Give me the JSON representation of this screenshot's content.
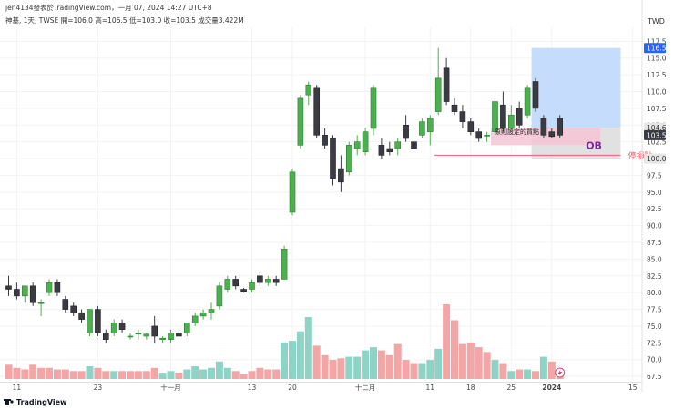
{
  "header": {
    "author_line": "jen4134發表於TradingView.com，一月 07, 2024 14:27 UTC+8",
    "symbol_line": "神基, 1天, TWSE  開=106.0  高=106.5  低=103.0  收=103.5  成交量3.422M"
  },
  "footer": {
    "brand": "TradingView"
  },
  "colors": {
    "up": "#4caf50",
    "down": "#3b3b44",
    "vol_up": "#8fd3c6",
    "vol_down": "#f4a5a5",
    "grid": "#f3f3f3",
    "text": "#333333",
    "tp_zone": "#bcd6fb",
    "sl_zone": "#d9d9d9",
    "ob_zone": "#f6c4d6",
    "stop_line": "#ef5a6f",
    "ob_text": "#7a2b9e"
  },
  "chart_data": {
    "type": "candlestick",
    "currency": "TWD",
    "x_ticks": [
      {
        "i": 1,
        "label": "11"
      },
      {
        "i": 11,
        "label": "23"
      },
      {
        "i": 20,
        "label": "十一月"
      },
      {
        "i": 30,
        "label": "13"
      },
      {
        "i": 35,
        "label": "20"
      },
      {
        "i": 44,
        "label": "十二月"
      },
      {
        "i": 52,
        "label": "11"
      },
      {
        "i": 57,
        "label": "18"
      },
      {
        "i": 62,
        "label": "25"
      },
      {
        "i": 67,
        "label": "2024"
      },
      {
        "i": 77,
        "label": "15"
      }
    ],
    "y_ticks": [
      117.5,
      115.0,
      112.5,
      110.0,
      107.5,
      105.0,
      102.5,
      100.0,
      97.5,
      95.0,
      92.5,
      90.0,
      87.5,
      85.0,
      82.5,
      80.0,
      77.5,
      75.0,
      72.5,
      70.0,
      67.5
    ],
    "y_range": [
      66.7,
      118.5
    ],
    "price_labels": [
      {
        "value": "116.5",
        "price": 116.5,
        "style": "blue"
      },
      {
        "value": "104.6",
        "price": 104.6,
        "style": "gray"
      },
      {
        "value": "103.5",
        "price": 103.5,
        "style": "dark"
      },
      {
        "value": "100.0",
        "price": 100.0,
        "style": "gray"
      }
    ],
    "candles": [
      {
        "i": 0,
        "o": 81.0,
        "h": 82.5,
        "l": 79.5,
        "c": 80.5
      },
      {
        "i": 1,
        "o": 80.5,
        "h": 81.5,
        "l": 79.0,
        "c": 79.5
      },
      {
        "i": 2,
        "o": 79.5,
        "h": 81.0,
        "l": 78.5,
        "c": 81.0
      },
      {
        "i": 3,
        "o": 81.0,
        "h": 81.5,
        "l": 78.0,
        "c": 78.5
      },
      {
        "i": 4,
        "o": 78.5,
        "h": 79.0,
        "l": 76.5,
        "c": 78.5
      },
      {
        "i": 5,
        "o": 80.0,
        "h": 82.0,
        "l": 79.5,
        "c": 81.5
      },
      {
        "i": 6,
        "o": 81.5,
        "h": 82.0,
        "l": 79.5,
        "c": 80.0
      },
      {
        "i": 7,
        "o": 79.0,
        "h": 79.5,
        "l": 77.0,
        "c": 77.5
      },
      {
        "i": 8,
        "o": 78.0,
        "h": 78.5,
        "l": 76.5,
        "c": 77.0
      },
      {
        "i": 9,
        "o": 77.0,
        "h": 77.5,
        "l": 75.5,
        "c": 76.0
      },
      {
        "i": 10,
        "o": 74.0,
        "h": 77.5,
        "l": 73.5,
        "c": 77.5
      },
      {
        "i": 11,
        "o": 77.5,
        "h": 78.0,
        "l": 73.5,
        "c": 74.0
      },
      {
        "i": 12,
        "o": 74.0,
        "h": 74.5,
        "l": 72.5,
        "c": 73.0
      },
      {
        "i": 13,
        "o": 74.0,
        "h": 76.0,
        "l": 73.5,
        "c": 75.5
      },
      {
        "i": 14,
        "o": 75.5,
        "h": 76.0,
        "l": 74.0,
        "c": 74.5
      },
      {
        "i": 15,
        "o": 73.5,
        "h": 74.0,
        "l": 73.0,
        "c": 73.5
      },
      {
        "i": 16,
        "o": 73.8,
        "h": 74.5,
        "l": 73.0,
        "c": 74.0
      },
      {
        "i": 17,
        "o": 73.5,
        "h": 74.0,
        "l": 73.0,
        "c": 73.8
      },
      {
        "i": 18,
        "o": 75.0,
        "h": 76.5,
        "l": 72.5,
        "c": 73.5
      },
      {
        "i": 19,
        "o": 73.0,
        "h": 73.5,
        "l": 72.5,
        "c": 73.2
      },
      {
        "i": 20,
        "o": 73.0,
        "h": 74.5,
        "l": 72.5,
        "c": 74.0
      },
      {
        "i": 21,
        "o": 74.0,
        "h": 74.5,
        "l": 73.5,
        "c": 73.5
      },
      {
        "i": 22,
        "o": 74.0,
        "h": 75.5,
        "l": 73.5,
        "c": 75.5
      },
      {
        "i": 23,
        "o": 75.5,
        "h": 77.0,
        "l": 75.0,
        "c": 76.5
      },
      {
        "i": 24,
        "o": 76.5,
        "h": 77.5,
        "l": 76.0,
        "c": 77.0
      },
      {
        "i": 25,
        "o": 77.0,
        "h": 78.5,
        "l": 76.0,
        "c": 77.5
      },
      {
        "i": 26,
        "o": 78.0,
        "h": 81.5,
        "l": 77.5,
        "c": 81.0
      },
      {
        "i": 27,
        "o": 80.5,
        "h": 82.5,
        "l": 80.0,
        "c": 82.0
      },
      {
        "i": 28,
        "o": 82.0,
        "h": 82.5,
        "l": 80.5,
        "c": 81.0
      },
      {
        "i": 29,
        "o": 80.5,
        "h": 80.7,
        "l": 80.0,
        "c": 80.2
      },
      {
        "i": 30,
        "o": 80.5,
        "h": 82.0,
        "l": 80.0,
        "c": 81.5
      },
      {
        "i": 31,
        "o": 82.5,
        "h": 83.0,
        "l": 81.0,
        "c": 81.5
      },
      {
        "i": 32,
        "o": 81.5,
        "h": 82.5,
        "l": 81.0,
        "c": 82.0
      },
      {
        "i": 33,
        "o": 82.0,
        "h": 82.5,
        "l": 81.0,
        "c": 81.5
      },
      {
        "i": 34,
        "o": 82.0,
        "h": 87.0,
        "l": 82.0,
        "c": 86.5
      },
      {
        "i": 35,
        "o": 92.0,
        "h": 98.5,
        "l": 91.5,
        "c": 98.0
      },
      {
        "i": 36,
        "o": 102.0,
        "h": 109.5,
        "l": 101.5,
        "c": 109.0
      },
      {
        "i": 37,
        "o": 109.5,
        "h": 111.5,
        "l": 108.0,
        "c": 111.0
      },
      {
        "i": 38,
        "o": 110.5,
        "h": 111.0,
        "l": 103.0,
        "c": 103.5
      },
      {
        "i": 39,
        "o": 103.5,
        "h": 104.5,
        "l": 101.5,
        "c": 102.0
      },
      {
        "i": 40,
        "o": 103.0,
        "h": 103.5,
        "l": 96.0,
        "c": 97.0
      },
      {
        "i": 41,
        "o": 98.5,
        "h": 100.5,
        "l": 95.0,
        "c": 96.5
      },
      {
        "i": 42,
        "o": 98.0,
        "h": 102.5,
        "l": 97.5,
        "c": 102.0
      },
      {
        "i": 43,
        "o": 101.5,
        "h": 103.5,
        "l": 100.5,
        "c": 102.5
      },
      {
        "i": 44,
        "o": 101.0,
        "h": 104.5,
        "l": 100.5,
        "c": 104.0
      },
      {
        "i": 45,
        "o": 104.5,
        "h": 111.0,
        "l": 103.5,
        "c": 110.5
      },
      {
        "i": 46,
        "o": 102.0,
        "h": 103.0,
        "l": 100.0,
        "c": 100.5
      },
      {
        "i": 47,
        "o": 101.5,
        "h": 102.5,
        "l": 100.5,
        "c": 101.0
      },
      {
        "i": 48,
        "o": 101.5,
        "h": 103.0,
        "l": 100.5,
        "c": 102.5
      },
      {
        "i": 49,
        "o": 105.0,
        "h": 106.5,
        "l": 102.5,
        "c": 103.0
      },
      {
        "i": 50,
        "o": 102.5,
        "h": 103.0,
        "l": 101.0,
        "c": 101.5
      },
      {
        "i": 51,
        "o": 103.5,
        "h": 106.0,
        "l": 103.0,
        "c": 105.5
      },
      {
        "i": 52,
        "o": 104.0,
        "h": 106.5,
        "l": 102.0,
        "c": 106.0
      },
      {
        "i": 53,
        "o": 107.0,
        "h": 116.5,
        "l": 106.5,
        "c": 112.0
      },
      {
        "i": 54,
        "o": 113.5,
        "h": 115.0,
        "l": 108.0,
        "c": 108.5
      },
      {
        "i": 55,
        "o": 108.0,
        "h": 109.0,
        "l": 106.5,
        "c": 107.0
      },
      {
        "i": 56,
        "o": 107.0,
        "h": 108.0,
        "l": 104.5,
        "c": 105.5
      },
      {
        "i": 57,
        "o": 105.5,
        "h": 106.0,
        "l": 103.5,
        "c": 104.0
      },
      {
        "i": 58,
        "o": 104.0,
        "h": 104.5,
        "l": 102.5,
        "c": 103.0
      },
      {
        "i": 59,
        "o": 103.5,
        "h": 104.0,
        "l": 102.5,
        "c": 103.5
      },
      {
        "i": 60,
        "o": 104.0,
        "h": 109.0,
        "l": 103.5,
        "c": 108.5
      },
      {
        "i": 61,
        "o": 108.0,
        "h": 110.0,
        "l": 104.0,
        "c": 104.5
      },
      {
        "i": 62,
        "o": 104.5,
        "h": 108.0,
        "l": 104.0,
        "c": 106.5
      },
      {
        "i": 63,
        "o": 107.5,
        "h": 108.5,
        "l": 104.5,
        "c": 105.0
      },
      {
        "i": 64,
        "o": 106.5,
        "h": 111.0,
        "l": 106.0,
        "c": 110.5
      },
      {
        "i": 65,
        "o": 111.5,
        "h": 112.0,
        "l": 107.0,
        "c": 107.5
      },
      {
        "i": 66,
        "o": 106.0,
        "h": 106.5,
        "l": 103.0,
        "c": 103.5
      },
      {
        "i": 67,
        "o": 104.0,
        "h": 104.5,
        "l": 103.0,
        "c": 103.3
      },
      {
        "i": 68,
        "o": 106.0,
        "h": 106.5,
        "l": 103.0,
        "c": 103.5
      }
    ],
    "volume_up_indices": [
      10,
      13,
      19,
      20,
      22,
      23,
      24,
      25,
      26,
      27,
      34,
      35,
      36,
      37,
      42,
      43,
      44,
      45,
      51,
      52,
      53,
      60,
      62,
      64,
      66
    ],
    "volume": [
      {
        "i": 0,
        "v": 0.9
      },
      {
        "i": 1,
        "v": 0.7
      },
      {
        "i": 2,
        "v": 0.6
      },
      {
        "i": 3,
        "v": 0.9
      },
      {
        "i": 4,
        "v": 0.7
      },
      {
        "i": 5,
        "v": 0.7
      },
      {
        "i": 6,
        "v": 0.6
      },
      {
        "i": 7,
        "v": 0.6
      },
      {
        "i": 8,
        "v": 0.5
      },
      {
        "i": 9,
        "v": 0.5
      },
      {
        "i": 10,
        "v": 0.8
      },
      {
        "i": 11,
        "v": 0.7
      },
      {
        "i": 12,
        "v": 0.5
      },
      {
        "i": 13,
        "v": 0.5
      },
      {
        "i": 14,
        "v": 0.5
      },
      {
        "i": 15,
        "v": 0.5
      },
      {
        "i": 16,
        "v": 0.5
      },
      {
        "i": 17,
        "v": 0.5
      },
      {
        "i": 18,
        "v": 0.7
      },
      {
        "i": 19,
        "v": 0.4
      },
      {
        "i": 20,
        "v": 0.5
      },
      {
        "i": 21,
        "v": 0.4
      },
      {
        "i": 22,
        "v": 0.6
      },
      {
        "i": 23,
        "v": 0.8
      },
      {
        "i": 24,
        "v": 0.6
      },
      {
        "i": 25,
        "v": 0.7
      },
      {
        "i": 26,
        "v": 1.1
      },
      {
        "i": 27,
        "v": 0.7
      },
      {
        "i": 28,
        "v": 0.5
      },
      {
        "i": 29,
        "v": 0.3
      },
      {
        "i": 30,
        "v": 0.5
      },
      {
        "i": 31,
        "v": 0.7
      },
      {
        "i": 32,
        "v": 0.6
      },
      {
        "i": 33,
        "v": 0.6
      },
      {
        "i": 34,
        "v": 2.3
      },
      {
        "i": 35,
        "v": 2.4
      },
      {
        "i": 36,
        "v": 3.0
      },
      {
        "i": 37,
        "v": 3.9
      },
      {
        "i": 38,
        "v": 2.1
      },
      {
        "i": 39,
        "v": 1.5
      },
      {
        "i": 40,
        "v": 1.2
      },
      {
        "i": 41,
        "v": 1.3
      },
      {
        "i": 42,
        "v": 1.4
      },
      {
        "i": 43,
        "v": 1.4
      },
      {
        "i": 44,
        "v": 1.8
      },
      {
        "i": 45,
        "v": 2.0
      },
      {
        "i": 46,
        "v": 1.8
      },
      {
        "i": 47,
        "v": 1.5
      },
      {
        "i": 48,
        "v": 2.2
      },
      {
        "i": 49,
        "v": 1.2
      },
      {
        "i": 50,
        "v": 1.0
      },
      {
        "i": 51,
        "v": 1.0
      },
      {
        "i": 52,
        "v": 1.2
      },
      {
        "i": 53,
        "v": 1.9
      },
      {
        "i": 54,
        "v": 4.7
      },
      {
        "i": 55,
        "v": 3.7
      },
      {
        "i": 56,
        "v": 2.2
      },
      {
        "i": 57,
        "v": 2.3
      },
      {
        "i": 58,
        "v": 2.0
      },
      {
        "i": 59,
        "v": 1.7
      },
      {
        "i": 60,
        "v": 1.2
      },
      {
        "i": 61,
        "v": 1.0
      },
      {
        "i": 62,
        "v": 0.5
      },
      {
        "i": 63,
        "v": 0.6
      },
      {
        "i": 64,
        "v": 0.6
      },
      {
        "i": 65,
        "v": 0.5
      },
      {
        "i": 66,
        "v": 1.4
      },
      {
        "i": 67,
        "v": 1.1
      },
      {
        "i": 68,
        "v": 0.6
      }
    ],
    "annotations": {
      "tp_zone": {
        "i_start": 64.5,
        "i_end": 75.5,
        "p_top": 116.5,
        "p_bottom": 104.6
      },
      "sl_zone": {
        "i_start": 64.5,
        "i_end": 75.5,
        "p_top": 104.6,
        "p_bottom": 100.0
      },
      "ob_zone": {
        "i_start": 59.5,
        "i_end": 73.0,
        "p_top": 104.6,
        "p_bottom": 102.0
      },
      "entry_label": "原則設定的買點",
      "ob_label": "OB",
      "stop_line": {
        "i_start": 52.5,
        "i_end": 75.5,
        "price": 100.5
      },
      "stop_label": "停損點"
    }
  }
}
